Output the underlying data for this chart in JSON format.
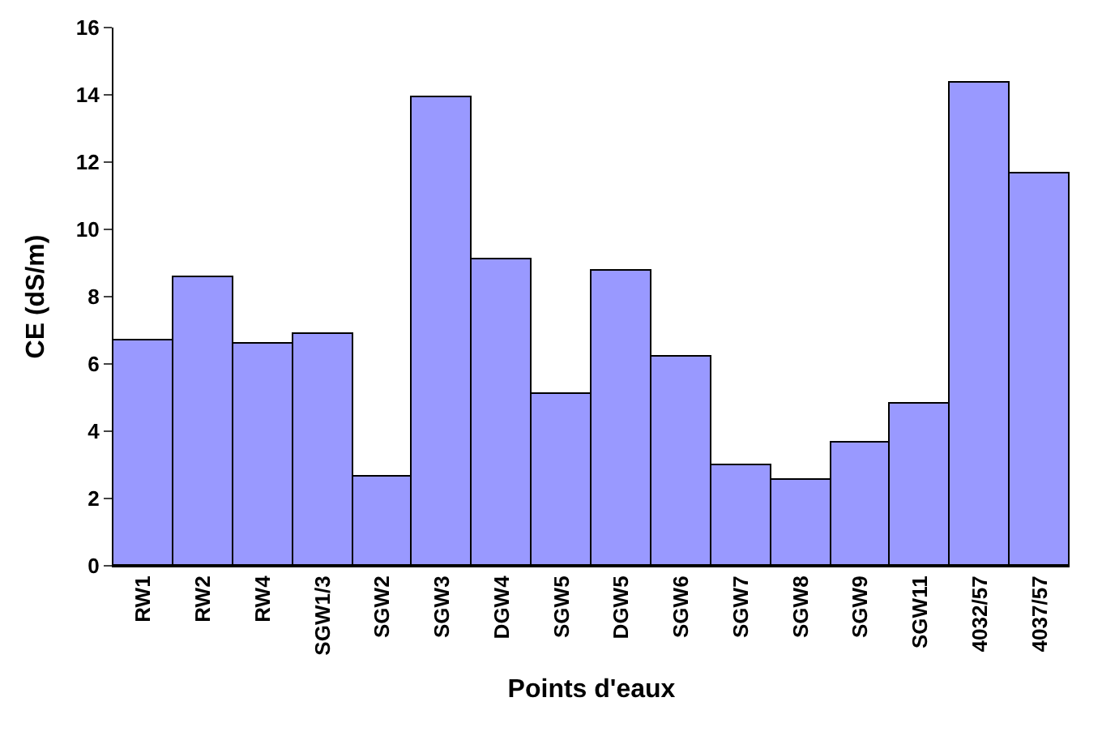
{
  "chart_data": {
    "type": "bar",
    "xlabel": "Points d'eaux",
    "ylabel": "CE (dS/m)",
    "categories": [
      "RW1",
      "RW2",
      "RW4",
      "SGW1/3",
      "SGW2",
      "SGW3",
      "DGW4",
      "SGW5",
      "DGW5",
      "SGW6",
      "SGW7",
      "SGW8",
      "SGW9",
      "SGW11",
      "4032/57",
      "4037/57"
    ],
    "values": [
      6.7,
      8.6,
      6.6,
      6.9,
      2.65,
      13.95,
      9.1,
      5.1,
      8.75,
      6.2,
      3.0,
      2.55,
      3.65,
      4.8,
      14.35,
      11.65
    ],
    "color": "#9999ff",
    "ylim": [
      0,
      16
    ],
    "yticks": [
      0,
      2,
      4,
      6,
      8,
      10,
      12,
      14,
      16
    ],
    "legend": false
  }
}
